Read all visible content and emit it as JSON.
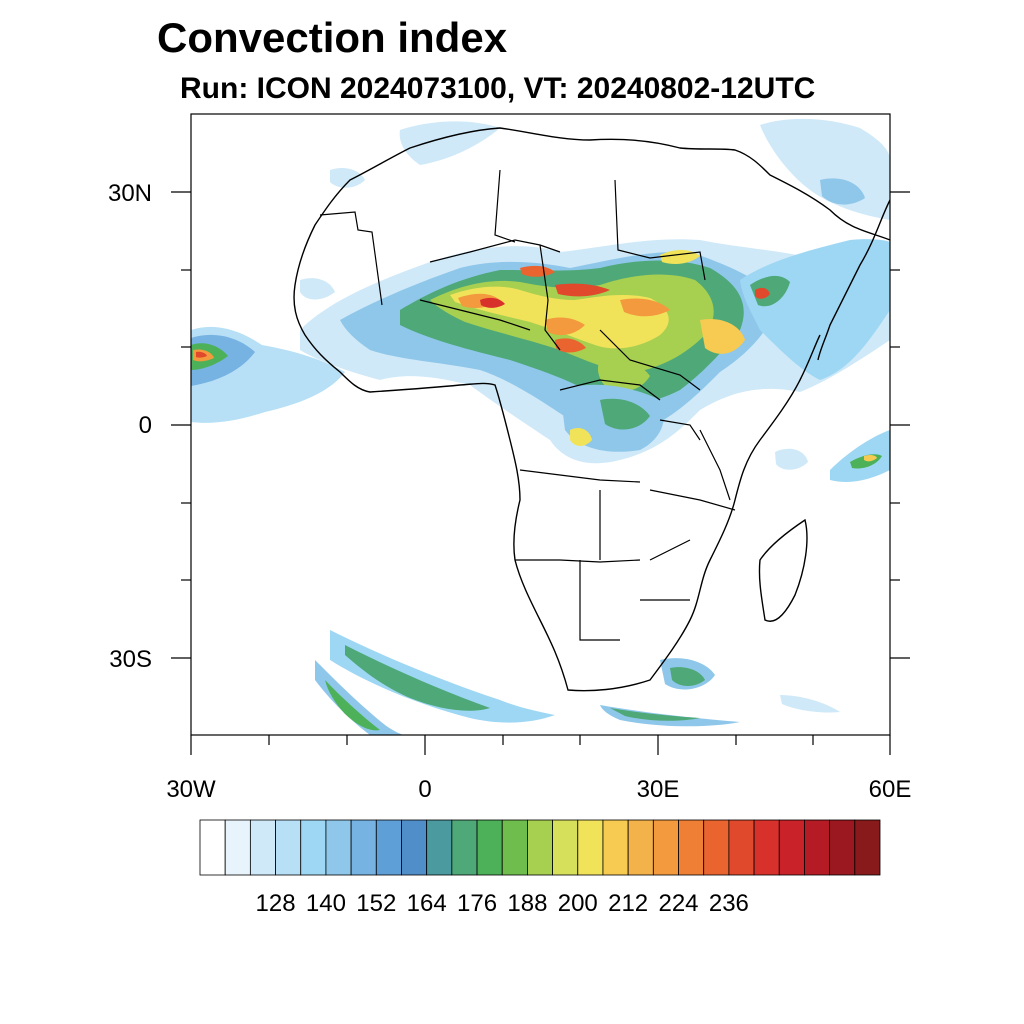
{
  "title": "Convection index",
  "subtitle": "Run: ICON 2024073100,  VT: 20240802-12UTC",
  "axes": {
    "lat_labels": [
      "30N",
      "0",
      "30S"
    ],
    "lon_labels": [
      "30W",
      "0",
      "30E",
      "60E"
    ]
  },
  "colorbar": {
    "labels": [
      "128",
      "140",
      "152",
      "164",
      "176",
      "188",
      "200",
      "212",
      "224",
      "236"
    ],
    "colors": [
      "#ffffff",
      "#e8f4fc",
      "#cfe9f8",
      "#b7e0f6",
      "#9ed7f4",
      "#8fc7ea",
      "#76b2e2",
      "#5f9fd8",
      "#4f8ec8",
      "#4a9aa0",
      "#4ea878",
      "#4cb158",
      "#6fbd4c",
      "#a7cf50",
      "#d6e05a",
      "#f0e35a",
      "#f7cb52",
      "#f4b24a",
      "#f39a3e",
      "#ef7f34",
      "#e9642e",
      "#e0492b",
      "#d8302a",
      "#c92228",
      "#b41b24",
      "#9c1820",
      "#881a1c"
    ]
  },
  "icons": {
    "map": "africa-map"
  }
}
